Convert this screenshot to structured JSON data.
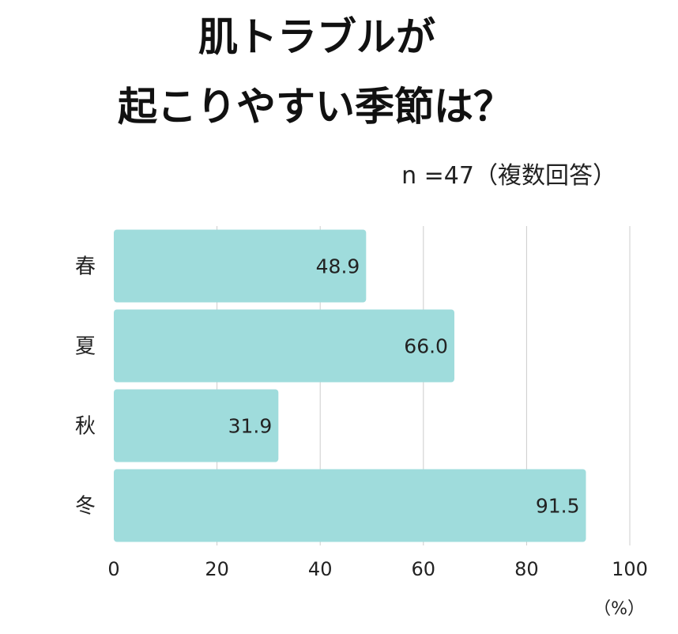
{
  "chart_data": {
    "type": "bar",
    "orientation": "horizontal",
    "title_lines": [
      "肌トラブルが",
      "起こりやすい季節は？"
    ],
    "subtitle": "n =47（複数回答）",
    "unit_label": "（%）",
    "categories": [
      "春",
      "夏",
      "秋",
      "冬"
    ],
    "values": [
      48.9,
      66.0,
      31.9,
      91.5
    ],
    "value_labels": [
      "48.9",
      "66.0",
      "31.9",
      "91.5"
    ],
    "xlim": [
      0,
      100
    ],
    "x_ticks": [
      0,
      20,
      40,
      60,
      80,
      100
    ],
    "x_tick_labels": [
      "0",
      "20",
      "40",
      "60",
      "80",
      "100"
    ],
    "grid": "vertical",
    "legend": "none",
    "bar_color": "#9fdcdc",
    "grid_color": "#cccccc"
  }
}
